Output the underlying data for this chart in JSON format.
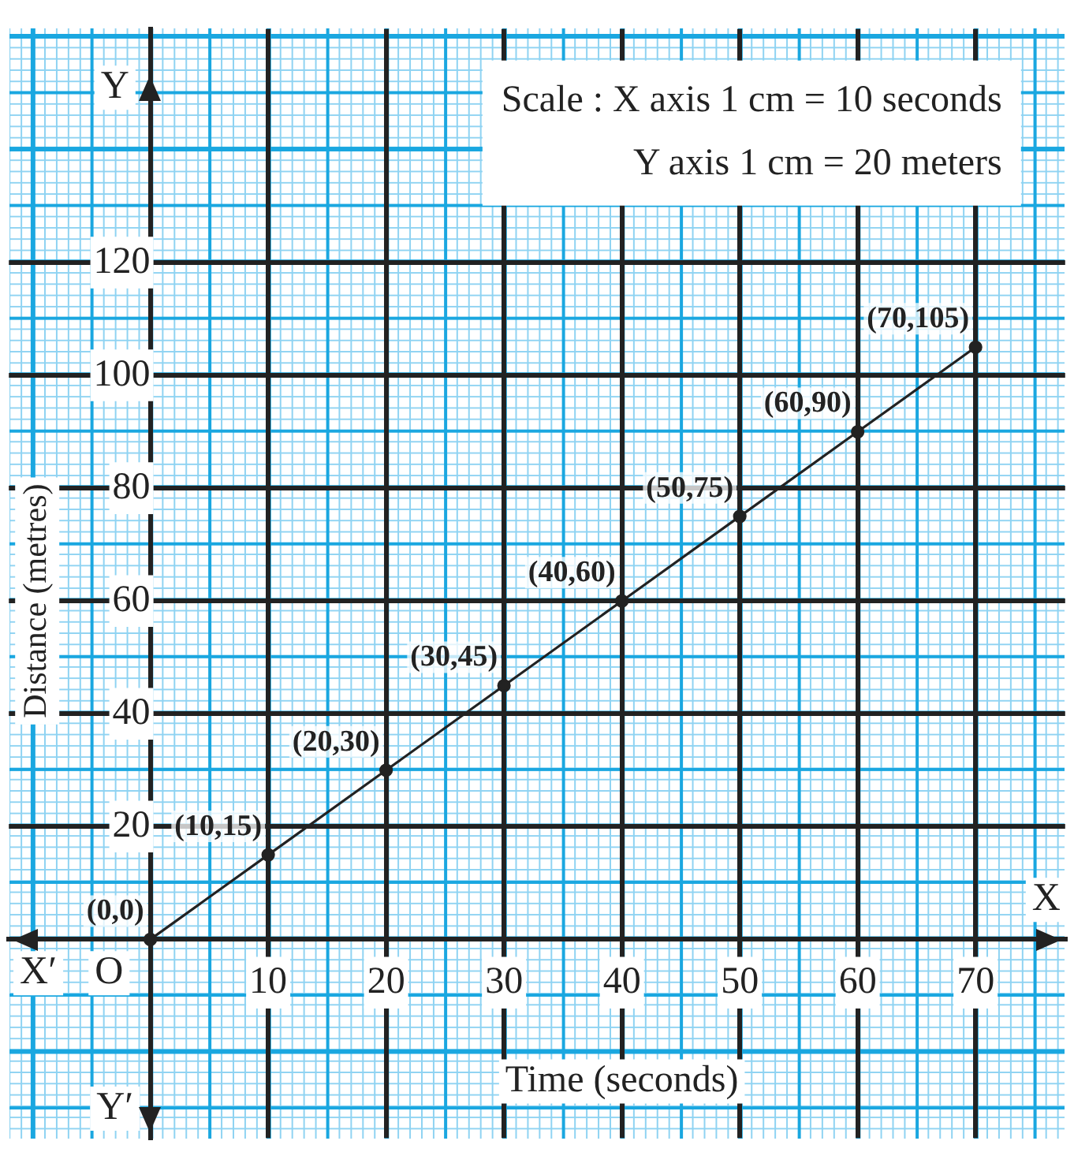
{
  "chart_data": {
    "type": "line",
    "xlabel": "Time (seconds)",
    "ylabel": "Distance (metres)",
    "x": [
      0,
      10,
      20,
      30,
      40,
      50,
      60,
      70
    ],
    "series": [
      {
        "color": "#222222",
        "values": [
          0,
          15,
          30,
          45,
          60,
          75,
          90,
          105
        ]
      }
    ],
    "xlim": [
      -12,
      77.6
    ],
    "ylim": [
      -35.2,
      161.4
    ],
    "xticks": [
      10,
      20,
      30,
      40,
      50,
      60,
      70
    ],
    "yticks": [
      20,
      40,
      60,
      80,
      100,
      120
    ],
    "grid": true,
    "marker": "circle",
    "line_style": "solid",
    "annotations": [
      "Scale : X axis 1 cm = 10 seconds",
      "Y axis 1 cm = 20 meters",
      {
        "text": "(0,0)",
        "x": 0,
        "y": 0
      },
      {
        "text": "(10,15)",
        "x": 10,
        "y": 15
      },
      {
        "text": "(20,30)",
        "x": 20,
        "y": 30
      },
      {
        "text": "(30,45)",
        "x": 30,
        "y": 45
      },
      {
        "text": "(40,60)",
        "x": 40,
        "y": 60
      },
      {
        "text": "(50,75)",
        "x": 50,
        "y": 75
      },
      {
        "text": "(60,90)",
        "x": 60,
        "y": 90
      },
      {
        "text": "(70,105)",
        "x": 70,
        "y": 105
      },
      {
        "text": "X",
        "x": 76,
        "y": 7
      },
      {
        "text": "X′",
        "x": -9.5,
        "y": -6
      },
      {
        "text": "O",
        "x": -3.5,
        "y": -6
      },
      {
        "text": "Y",
        "x": -3,
        "y": 151
      },
      {
        "text": "Y′",
        "x": -3,
        "y": -30
      }
    ]
  }
}
